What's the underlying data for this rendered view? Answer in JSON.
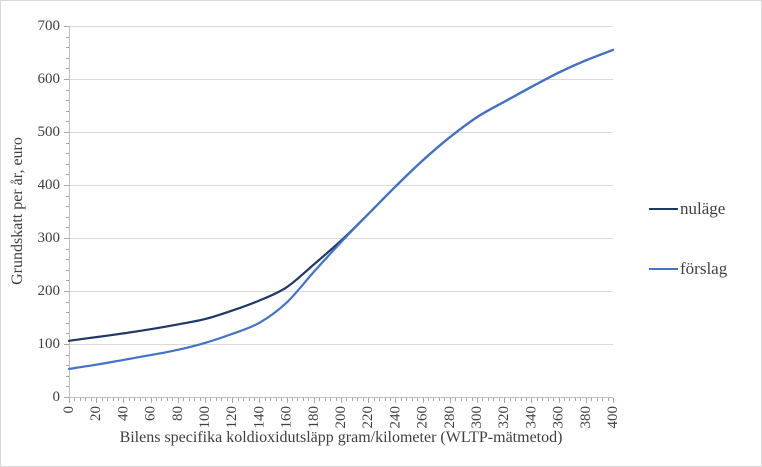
{
  "colors": {
    "gridline": "#d9d9d9",
    "axis": "#bfbfbf",
    "tick": "#a6a6a6",
    "text": "#404040",
    "border": "#d9d9d9",
    "nulage_line": "#1f3864",
    "forslag_line": "#4472c4"
  },
  "chart_data": {
    "type": "line",
    "title": "",
    "xlabel": "Bilens specifika koldioxidutsläpp gram/kilometer (WLTP-mätmetod)",
    "ylabel": "Grundskatt per år, euro",
    "xlim": [
      0,
      400
    ],
    "ylim": [
      0,
      700
    ],
    "xticks": [
      0,
      20,
      40,
      60,
      80,
      100,
      120,
      140,
      160,
      180,
      200,
      220,
      240,
      260,
      280,
      300,
      320,
      340,
      360,
      380,
      400
    ],
    "yticks": [
      0,
      100,
      200,
      300,
      400,
      500,
      600,
      700
    ],
    "xtick_step": 20,
    "ytick_step": 100,
    "x_minor_step": 4,
    "y_minor_step": 20,
    "grid": "horizontal-only",
    "legend_position": "right",
    "x_tick_label_rotation": -90,
    "x": [
      0,
      20,
      40,
      60,
      80,
      100,
      120,
      140,
      160,
      180,
      200,
      220,
      240,
      260,
      280,
      300,
      320,
      340,
      360,
      380,
      400
    ],
    "series": [
      {
        "name": "nuläge",
        "color": "#1f3864",
        "values": [
          106,
          113,
          120,
          128,
          137,
          147,
          163,
          182,
          207,
          250,
          295,
          345,
          397,
          446,
          490,
          528,
          557,
          585,
          612,
          635,
          655
        ]
      },
      {
        "name": "förslag",
        "color": "#4472c4",
        "values": [
          53,
          61,
          70,
          79,
          89,
          102,
          119,
          140,
          178,
          236,
          292,
          345,
          397,
          446,
          490,
          528,
          557,
          585,
          612,
          635,
          655
        ]
      }
    ],
    "notes": "Curves coincide from ~205 g/km upward (merge at ~300 euro); lighter 'förslag' line drawn on top."
  }
}
